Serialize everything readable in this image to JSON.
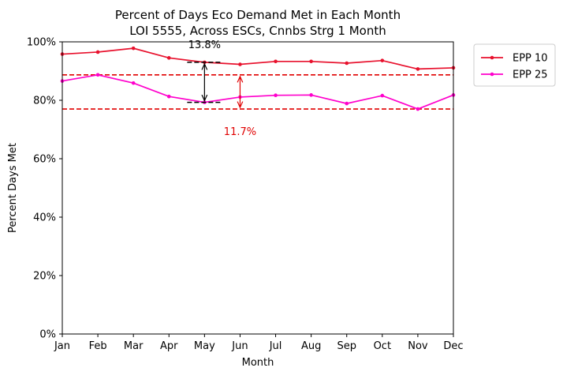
{
  "chart_data": {
    "type": "line",
    "title": "Percent of Days Eco Demand Met in Each Month",
    "subtitle": "LOI 5555, Across ESCs, Cnnbs Strg 1 Month",
    "xlabel": "Month",
    "ylabel": "Percent Days Met",
    "categories": [
      "Jan",
      "Feb",
      "Mar",
      "Apr",
      "May",
      "Jun",
      "Jul",
      "Aug",
      "Sep",
      "Oct",
      "Nov",
      "Dec"
    ],
    "ylim": [
      0,
      100
    ],
    "yticks": [
      {
        "value": 0,
        "label": "0%"
      },
      {
        "value": 20,
        "label": "20%"
      },
      {
        "value": 40,
        "label": "40%"
      },
      {
        "value": 60,
        "label": "60%"
      },
      {
        "value": 80,
        "label": "80%"
      },
      {
        "value": 100,
        "label": "100%"
      }
    ],
    "legend_position": "outside-top-right",
    "grid": false,
    "series": [
      {
        "name": "EPP 10",
        "color": "#e8112d",
        "values": [
          95.8,
          96.5,
          97.8,
          94.5,
          93.0,
          92.3,
          93.3,
          93.3,
          92.7,
          93.6,
          90.7,
          91.1
        ]
      },
      {
        "name": "EPP 25",
        "color": "#ff00cc",
        "values": [
          86.6,
          88.7,
          85.9,
          81.3,
          79.3,
          81.1,
          81.7,
          81.8,
          78.9,
          81.6,
          77.0,
          81.8
        ]
      }
    ],
    "reference_lines": [
      {
        "y": 88.7,
        "color": "#e00000",
        "style": "dashed"
      },
      {
        "y": 77.0,
        "color": "#e00000",
        "style": "dashed"
      }
    ],
    "annotations": [
      {
        "label": "13.8%",
        "x": 4,
        "y_top": 93.0,
        "y_bottom": 79.3,
        "color": "#000000"
      },
      {
        "label": "11.7%",
        "x": 5,
        "y_top": 88.7,
        "y_bottom": 77.0,
        "color": "#e00000"
      }
    ]
  }
}
